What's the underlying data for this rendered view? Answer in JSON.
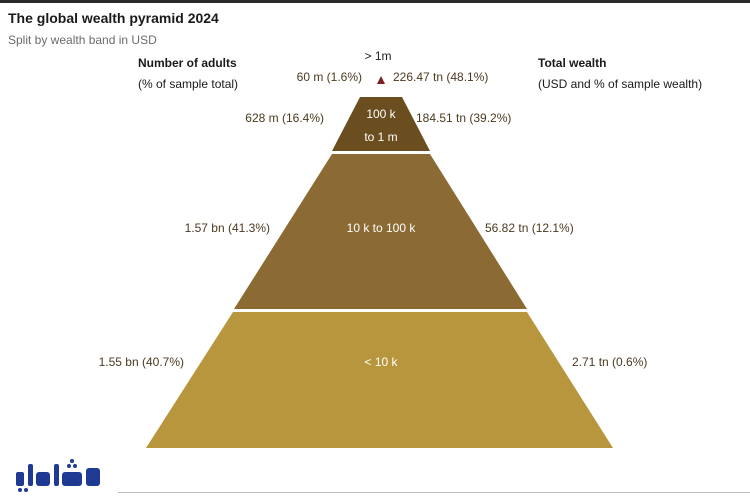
{
  "header": {
    "title": "The global wealth pyramid 2024",
    "subtitle": "Split by wealth band in USD"
  },
  "columns": {
    "left_title": "Number of adults",
    "left_sub": "(% of sample total)",
    "right_title": "Total wealth",
    "right_sub": "(USD and % of sample wealth)"
  },
  "colors": {
    "tier1": "#7b1f22",
    "tier2": "#6a4e1f",
    "tier3": "#8b6b33",
    "tier4": "#b8963d",
    "label_text": "#4a3a1f"
  },
  "logo": {
    "icon": "padash-logo-icon",
    "text": "پاداش"
  },
  "chart_data": {
    "type": "pyramid",
    "title": "The global wealth pyramid 2024",
    "subtitle": "Split by wealth band in USD",
    "tiers": [
      {
        "band": "> 1m",
        "adults": "60 m (1.6%)",
        "adults_value_m": 60,
        "adults_pct": 1.6,
        "wealth": "226.47 tn (48.1%)",
        "wealth_value_tn": 226.47,
        "wealth_pct": 48.1
      },
      {
        "band": "100 k to 1 m",
        "band_line1": "100 k",
        "band_line2": "to 1 m",
        "adults": "628 m (16.4%)",
        "adults_value_m": 628,
        "adults_pct": 16.4,
        "wealth": "184.51 tn (39.2%)",
        "wealth_value_tn": 184.51,
        "wealth_pct": 39.2
      },
      {
        "band": "10 k to 100 k",
        "adults": "1.57 bn (41.3%)",
        "adults_value_m": 1570,
        "adults_pct": 41.3,
        "wealth": "56.82 tn (12.1%)",
        "wealth_value_tn": 56.82,
        "wealth_pct": 12.1
      },
      {
        "band": "< 10 k",
        "adults": "1.55 bn (40.7%)",
        "adults_value_m": 1550,
        "adults_pct": 40.7,
        "wealth": "2.71 tn (0.6%)",
        "wealth_value_tn": 2.71,
        "wealth_pct": 0.6
      }
    ]
  }
}
